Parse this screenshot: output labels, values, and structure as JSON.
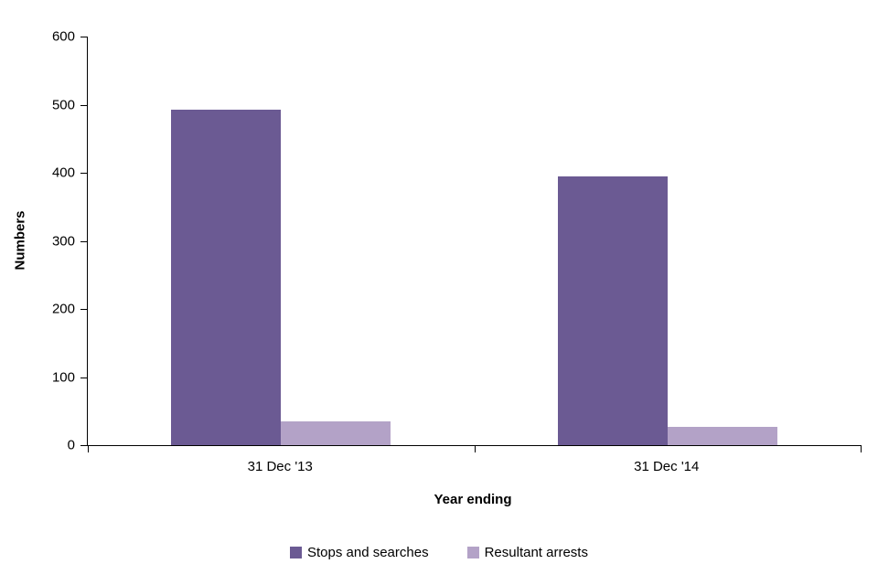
{
  "chart_data": {
    "type": "bar",
    "categories": [
      "31 Dec '13",
      "31 Dec '14"
    ],
    "series": [
      {
        "name": "Stops and searches",
        "color": "#6b5a93",
        "values": [
          492,
          395
        ]
      },
      {
        "name": "Resultant arrests",
        "color": "#b3a2c7",
        "values": [
          35,
          27
        ]
      }
    ],
    "title": "",
    "xlabel": "Year ending",
    "ylabel": "Numbers",
    "ylim": [
      0,
      600
    ],
    "ytick_step": 100,
    "yticks": [
      0,
      100,
      200,
      300,
      400,
      500,
      600
    ],
    "grid": false,
    "legend_position": "bottom",
    "axis_color": "#000000",
    "background_color": "#ffffff"
  }
}
